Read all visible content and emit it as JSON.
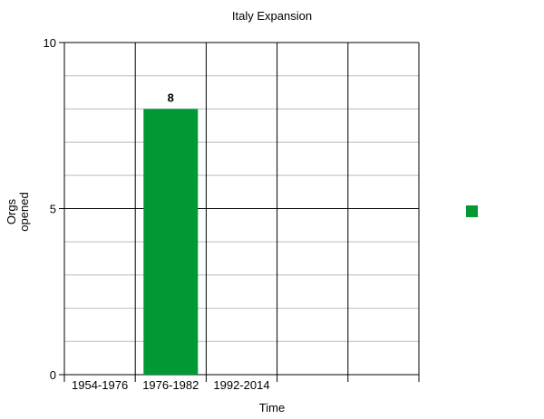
{
  "chart_data": {
    "type": "bar",
    "title": "Italy Expansion",
    "x_label": "Time",
    "y_label": "Orgs opened",
    "categories": [
      "1954-1976",
      "1976-1982",
      "1992-2014",
      null,
      null
    ],
    "series": [
      {
        "color": "#009933",
        "values": [
          null,
          8,
          null,
          null,
          null
        ]
      }
    ],
    "ylim": [
      0,
      10
    ],
    "yticks": [
      0,
      5,
      10
    ],
    "minor_yticks": [
      1,
      2,
      3,
      4,
      6,
      7,
      8,
      9
    ],
    "grid": true,
    "legend": "right"
  }
}
